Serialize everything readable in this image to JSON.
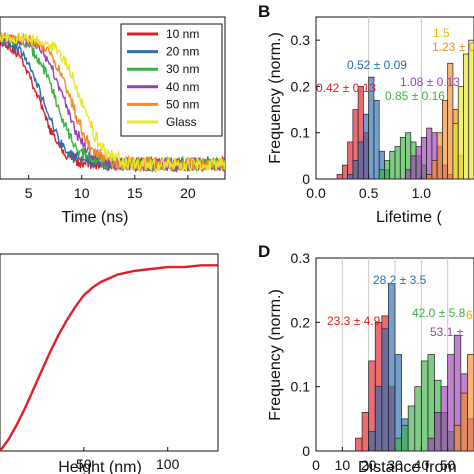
{
  "panels": [
    "B",
    "D"
  ],
  "chart_data": [
    {
      "id": "A",
      "type": "line",
      "xlabel": "Time (ns)",
      "ylabel": "",
      "xlim": [
        2.3,
        23.5
      ],
      "ylim": [
        -0.05,
        1.0
      ],
      "xticks": [
        5,
        10,
        15,
        20
      ],
      "legend": {
        "placement": "top-right"
      },
      "series": [
        {
          "name": "10 nm",
          "color": "#e01f26",
          "tau": 0.42
        },
        {
          "name": "20 nm",
          "color": "#2b6cb0",
          "tau": 0.52
        },
        {
          "name": "30 nm",
          "color": "#3cb043",
          "tau": 0.85
        },
        {
          "name": "40 nm",
          "color": "#9b3fb5",
          "tau": 1.08
        },
        {
          "name": "50 nm",
          "color": "#f28c28",
          "tau": 1.23
        },
        {
          "name": "Glass",
          "color": "#e6e62a",
          "tau": 1.5
        }
      ]
    },
    {
      "id": "B",
      "type": "bar",
      "title": "",
      "xlabel": "Lifetime (",
      "ylabel": "Frequency (norm.)",
      "xlim": [
        0,
        1.5
      ],
      "ylim": [
        0,
        0.35
      ],
      "xticks": [
        "0.0",
        "0.5",
        "1.0"
      ],
      "yticks": [
        "0",
        "0.1",
        "0.2",
        "0.3"
      ],
      "bin_width": 0.05,
      "series": [
        {
          "color": "#e01f26",
          "bins": [
            0.2,
            0.25,
            0.3,
            0.35,
            0.4,
            0.45
          ],
          "values": [
            0.01,
            0.03,
            0.08,
            0.15,
            0.2,
            0.1
          ]
        },
        {
          "color": "#2b6cb0",
          "bins": [
            0.3,
            0.35,
            0.4,
            0.45,
            0.5,
            0.55,
            0.6,
            0.65
          ],
          "values": [
            0.01,
            0.04,
            0.08,
            0.14,
            0.22,
            0.17,
            0.06,
            0.02
          ]
        },
        {
          "color": "#3cb043",
          "bins": [
            0.6,
            0.65,
            0.7,
            0.75,
            0.8,
            0.85,
            0.9,
            0.95,
            1.0,
            1.05
          ],
          "values": [
            0.02,
            0.04,
            0.06,
            0.07,
            0.09,
            0.1,
            0.08,
            0.05,
            0.03,
            0.01
          ]
        },
        {
          "color": "#9b3fb5",
          "bins": [
            0.85,
            0.9,
            0.95,
            1.0,
            1.05,
            1.1,
            1.15,
            1.2,
            1.25
          ],
          "values": [
            0.02,
            0.05,
            0.07,
            0.09,
            0.11,
            0.1,
            0.07,
            0.03,
            0.01
          ]
        },
        {
          "color": "#f28c28",
          "bins": [
            1.05,
            1.1,
            1.15,
            1.2,
            1.25,
            1.3,
            1.35
          ],
          "values": [
            0.01,
            0.04,
            0.1,
            0.17,
            0.25,
            0.15,
            0.05
          ]
        },
        {
          "color": "#e6e62a",
          "bins": [
            1.3,
            1.35,
            1.4,
            1.45
          ],
          "values": [
            0.12,
            0.2,
            0.27,
            0.3
          ]
        }
      ],
      "annotations": [
        {
          "text": "0.42 ± 0.13",
          "color": "#e01f26"
        },
        {
          "text": "0.52 ± 0.09",
          "color": "#2b6cb0"
        },
        {
          "text": "0.85 ± 0.16",
          "color": "#3cb043"
        },
        {
          "text": "1.08 ± 0.13",
          "color": "#9b3fb5"
        },
        {
          "text": "1.23 ± 0",
          "color": "#f28c28"
        },
        {
          "text": "1.5",
          "color": "#e6b800"
        }
      ]
    },
    {
      "id": "C",
      "type": "line",
      "xlabel": "Height (nm)",
      "ylabel": "",
      "xlim": [
        0,
        130
      ],
      "ylim": [
        0,
        1.05
      ],
      "xticks": [
        "50",
        "100"
      ],
      "series": [
        {
          "color": "#e01f26",
          "x": [
            0,
            5,
            10,
            15,
            20,
            25,
            30,
            35,
            40,
            45,
            50,
            55,
            60,
            65,
            70,
            80,
            90,
            100,
            110,
            120,
            130
          ],
          "y": [
            0.0,
            0.06,
            0.14,
            0.23,
            0.33,
            0.43,
            0.53,
            0.62,
            0.7,
            0.77,
            0.83,
            0.87,
            0.9,
            0.92,
            0.94,
            0.96,
            0.97,
            0.98,
            0.98,
            0.99,
            0.99
          ]
        }
      ]
    },
    {
      "id": "D",
      "type": "bar",
      "title": "",
      "xlabel": "Distance from",
      "ylabel": "Frequency (norm.)",
      "xlim": [
        0,
        60
      ],
      "ylim": [
        0,
        0.3
      ],
      "xticks": [
        "0",
        "10",
        "20",
        "30",
        "40",
        "50"
      ],
      "yticks": [
        "0",
        "0.1",
        "0.2",
        "0.3"
      ],
      "bin_width": 2.5,
      "series": [
        {
          "color": "#e01f26",
          "bins": [
            15,
            17.5,
            20,
            22.5,
            25,
            27.5
          ],
          "values": [
            0.02,
            0.06,
            0.14,
            0.2,
            0.21,
            0.1
          ]
        },
        {
          "color": "#2b6cb0",
          "bins": [
            20,
            22.5,
            25,
            27.5,
            30,
            32.5
          ],
          "values": [
            0.03,
            0.1,
            0.19,
            0.26,
            0.15,
            0.05
          ]
        },
        {
          "color": "#3cb043",
          "bins": [
            30,
            32.5,
            35,
            37.5,
            40,
            42.5,
            45,
            47.5,
            50
          ],
          "values": [
            0.02,
            0.04,
            0.07,
            0.1,
            0.14,
            0.15,
            0.11,
            0.06,
            0.03
          ]
        },
        {
          "color": "#9b3fb5",
          "bins": [
            42.5,
            45,
            47.5,
            50,
            52.5,
            55,
            57.5
          ],
          "values": [
            0.02,
            0.06,
            0.1,
            0.15,
            0.18,
            0.12,
            0.05
          ]
        },
        {
          "color": "#f28c28",
          "bins": [
            52.5,
            55,
            57.5
          ],
          "values": [
            0.04,
            0.09,
            0.15
          ]
        }
      ],
      "annotations": [
        {
          "text": "23.3 ± 4.9",
          "color": "#e01f26"
        },
        {
          "text": "28.2 ± 3.5",
          "color": "#2b6cb0"
        },
        {
          "text": "42.0 ± 5.8",
          "color": "#3cb043"
        },
        {
          "text": "53.1 ±",
          "color": "#9b3fb5"
        },
        {
          "text": "6",
          "color": "#e6b800"
        }
      ]
    }
  ]
}
